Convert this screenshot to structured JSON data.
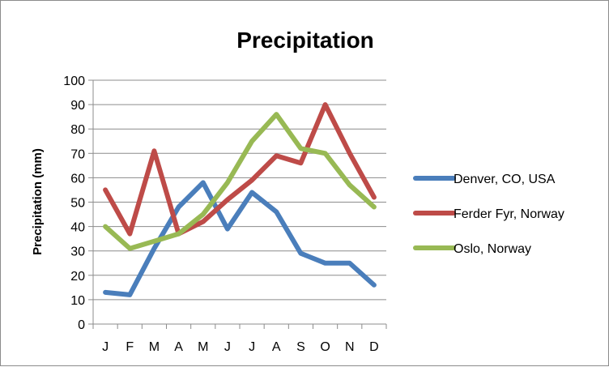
{
  "chart_data": {
    "type": "line",
    "title": "Precipitation",
    "xlabel": "",
    "ylabel": "Precipitation (mm)",
    "categories": [
      "J",
      "F",
      "M",
      "A",
      "M",
      "J",
      "J",
      "A",
      "S",
      "O",
      "N",
      "D"
    ],
    "yticks": [
      "0",
      "10",
      "20",
      "30",
      "40",
      "50",
      "60",
      "70",
      "80",
      "90",
      "100"
    ],
    "ylim": [
      0,
      100
    ],
    "grid": "horizontal",
    "legend_position": "right",
    "series": [
      {
        "name": "Denver, CO, USA",
        "color": "#4a7ebb",
        "values": [
          13,
          12,
          31,
          48,
          58,
          39,
          54,
          46,
          29,
          25,
          25,
          16
        ]
      },
      {
        "name": "Ferder Fyr, Norway",
        "color": "#be4b48",
        "values": [
          55,
          37,
          71,
          37,
          42,
          51,
          59,
          69,
          66,
          90,
          70,
          52
        ]
      },
      {
        "name": "Oslo, Norway",
        "color": "#98b954",
        "values": [
          40,
          31,
          34,
          37,
          45,
          58,
          75,
          86,
          72,
          70,
          57,
          48
        ]
      }
    ]
  }
}
